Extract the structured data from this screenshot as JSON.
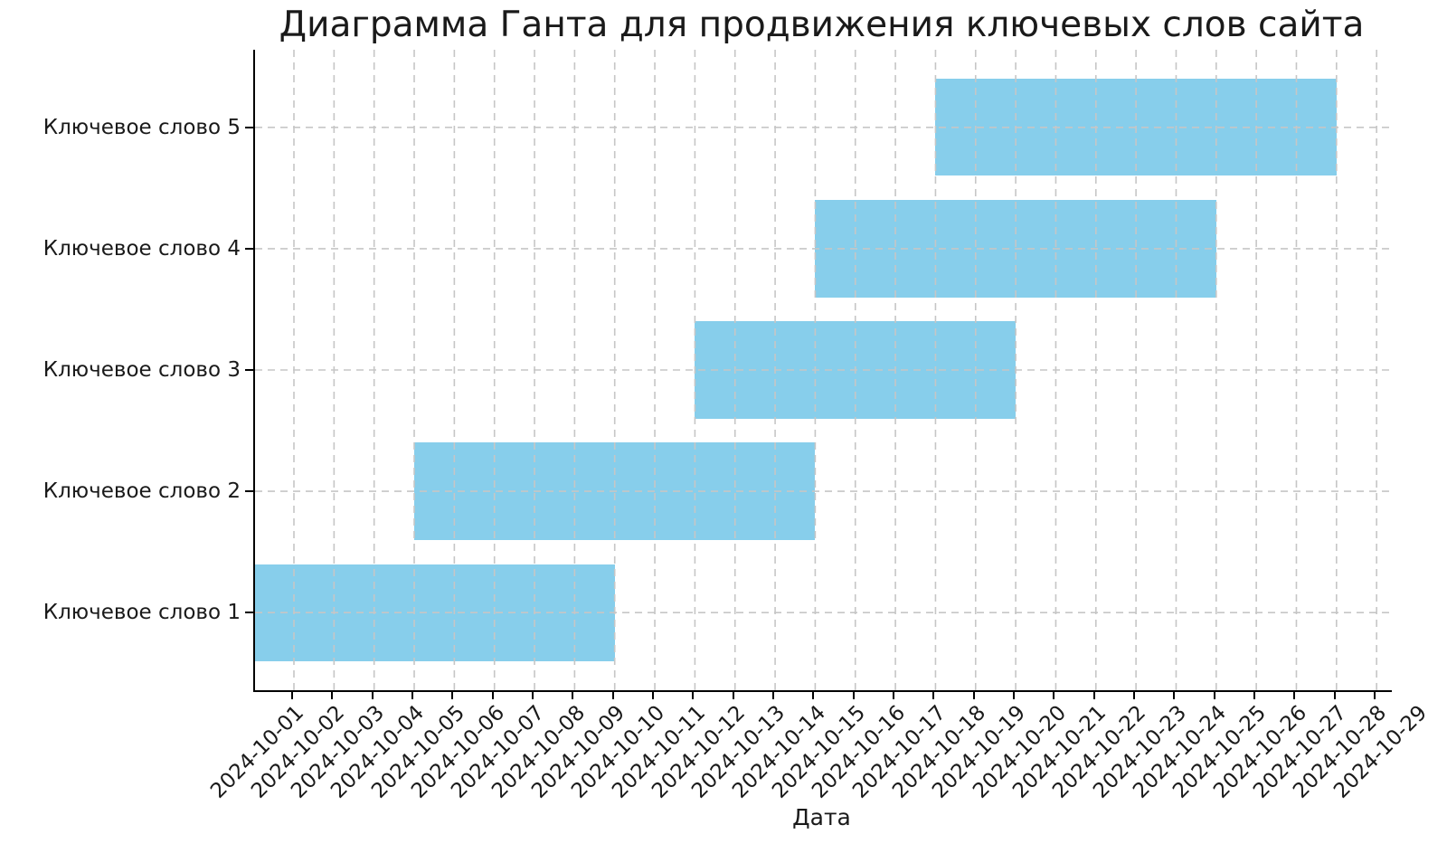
{
  "figure": {
    "background": "#ffffff"
  },
  "chart_data": {
    "type": "gantt",
    "title": "Диаграмма Ганта для продвижения ключевых слов сайта",
    "xlabel": "Дата",
    "ylabel": "",
    "bar_color": "#87CEEB",
    "axis_color": "#000000",
    "text_color": "#1a1a1a",
    "grid": {
      "show": true,
      "linestyle": "dashed",
      "color": "#c6c6c6"
    },
    "x_tick_rotation_deg": 45,
    "x_range_days": [
      -0.97,
      27.38
    ],
    "y_range_units": [
      0.36,
      5.64
    ],
    "bar_height_units": 0.8,
    "x_ticks": [
      "2024-10-01",
      "2024-10-02",
      "2024-10-03",
      "2024-10-04",
      "2024-10-05",
      "2024-10-06",
      "2024-10-07",
      "2024-10-08",
      "2024-10-09",
      "2024-10-10",
      "2024-10-11",
      "2024-10-12",
      "2024-10-13",
      "2024-10-14",
      "2024-10-15",
      "2024-10-16",
      "2024-10-17",
      "2024-10-18",
      "2024-10-19",
      "2024-10-20",
      "2024-10-21",
      "2024-10-22",
      "2024-10-23",
      "2024-10-24",
      "2024-10-25",
      "2024-10-26",
      "2024-10-27",
      "2024-10-28",
      "2024-10-29"
    ],
    "tasks": [
      {
        "label": "Ключевое слово 1",
        "row": 1,
        "start": "2024-09-30",
        "end": "2024-10-09"
      },
      {
        "label": "Ключевое слово 2",
        "row": 2,
        "start": "2024-10-04",
        "end": "2024-10-14"
      },
      {
        "label": "Ключевое слово 3",
        "row": 3,
        "start": "2024-10-11",
        "end": "2024-10-19"
      },
      {
        "label": "Ключевое слово 4",
        "row": 4,
        "start": "2024-10-14",
        "end": "2024-10-24"
      },
      {
        "label": "Ключевое слово 5",
        "row": 5,
        "start": "2024-10-17",
        "end": "2024-10-27"
      }
    ]
  }
}
